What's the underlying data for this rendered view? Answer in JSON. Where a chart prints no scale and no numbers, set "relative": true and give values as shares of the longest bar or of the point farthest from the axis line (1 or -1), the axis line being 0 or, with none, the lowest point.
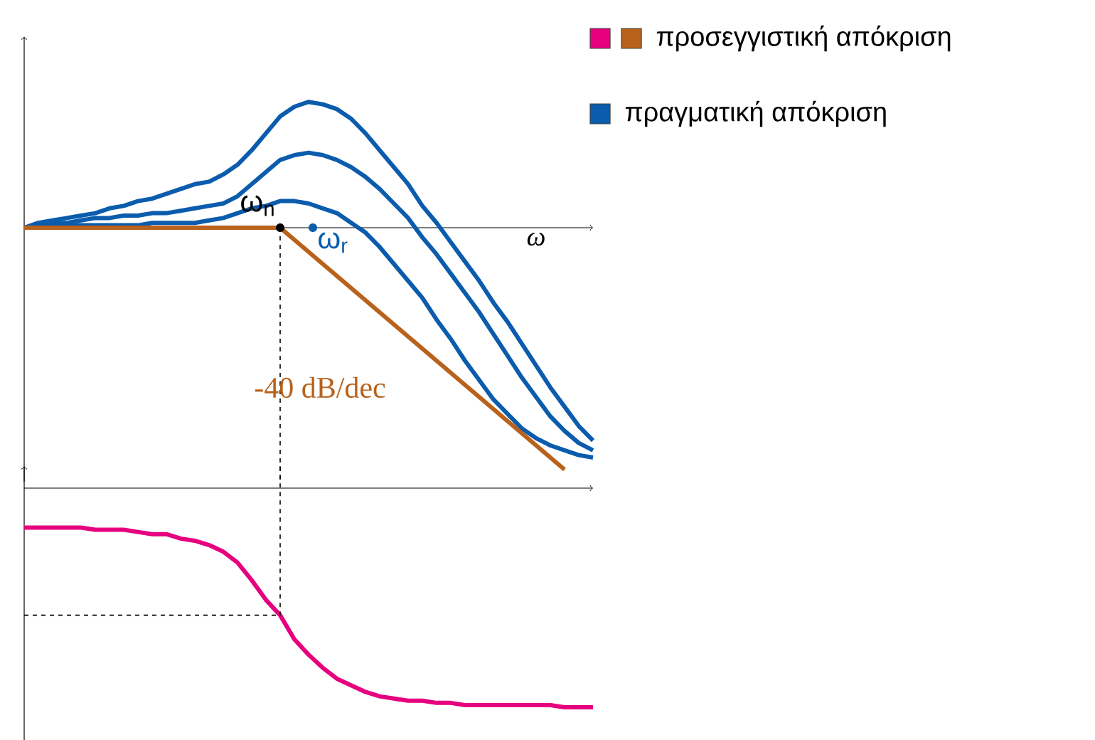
{
  "chart_data": [
    {
      "type": "line",
      "relative": true,
      "xlabel": "ω",
      "legend": "top right",
      "categories": [
        null,
        null,
        null,
        null,
        null,
        null,
        null,
        null,
        null,
        null,
        null,
        null,
        null,
        null,
        null,
        null,
        null,
        null,
        null,
        null,
        null,
        null,
        null,
        null,
        null,
        null,
        null,
        null,
        null,
        null,
        null,
        null,
        null,
        null,
        null,
        null,
        null,
        null,
        null,
        null,
        null
      ],
      "series": [
        {
          "name": "προσεγγιστική απόκριση",
          "color": "#b8621b",
          "values": [
            0,
            0,
            0,
            0,
            0,
            0,
            0,
            0,
            0,
            0,
            0,
            0,
            0,
            0,
            0,
            0,
            0,
            0,
            0,
            -0.05,
            -0.1,
            -0.15,
            -0.2,
            -0.25,
            -0.3,
            -0.35,
            -0.4,
            -0.45,
            -0.5,
            -0.55,
            -0.6,
            -0.65,
            -0.7,
            -0.75,
            -0.8,
            -0.85,
            -0.9,
            -0.95,
            -1,
            null,
            null
          ]
        },
        {
          "name": "πραγματική απόκριση",
          "color": "#0b5cad",
          "values": [
            0,
            0.02,
            0.03,
            0.04,
            0.05,
            0.06,
            0.08,
            0.09,
            0.11,
            0.12,
            0.14,
            0.16,
            0.18,
            0.19,
            0.22,
            0.26,
            0.32,
            0.39,
            0.46,
            0.5,
            0.52,
            0.51,
            0.49,
            0.45,
            0.39,
            0.32,
            0.25,
            0.18,
            0.09,
            0.02,
            -0.06,
            -0.14,
            -0.22,
            -0.31,
            -0.39,
            -0.48,
            -0.57,
            -0.66,
            -0.74,
            -0.82,
            -0.88
          ]
        },
        {
          "color": "#0b5cad",
          "values": [
            0,
            0.01,
            0.02,
            0.02,
            0.03,
            0.04,
            0.04,
            0.05,
            0.05,
            0.06,
            0.06,
            0.07,
            0.08,
            0.09,
            0.1,
            0.13,
            0.18,
            0.23,
            0.28,
            0.3,
            0.31,
            0.3,
            0.28,
            0.25,
            0.21,
            0.16,
            0.1,
            0.04,
            -0.04,
            -0.11,
            -0.19,
            -0.27,
            -0.35,
            -0.44,
            -0.53,
            -0.62,
            -0.7,
            -0.78,
            -0.84,
            -0.89,
            -0.92
          ]
        },
        {
          "color": "#0b5cad",
          "values": [
            0,
            0,
            0.01,
            0.01,
            0.01,
            0.01,
            0.01,
            0.01,
            0.01,
            0.02,
            0.02,
            0.02,
            0.02,
            0.03,
            0.04,
            0.06,
            0.08,
            0.09,
            0.11,
            0.11,
            0.1,
            0.08,
            0.06,
            0.02,
            -0.02,
            -0.08,
            -0.15,
            -0.22,
            -0.29,
            -0.38,
            -0.46,
            -0.55,
            -0.63,
            -0.71,
            -0.77,
            -0.83,
            -0.87,
            -0.9,
            -0.92,
            -0.94,
            -0.95
          ]
        }
      ],
      "annotations": [
        "ω$_{n}$",
        "ω$_{r}$",
        "-40 dB/dec"
      ]
    },
    {
      "type": "line",
      "relative": true,
      "categories": [
        null,
        null,
        null,
        null,
        null,
        null,
        null,
        null,
        null,
        null,
        null,
        null,
        null,
        null,
        null,
        null,
        null,
        null,
        null,
        null,
        null,
        null,
        null,
        null,
        null,
        null,
        null,
        null,
        null,
        null,
        null,
        null,
        null,
        null,
        null,
        null,
        null,
        null,
        null,
        null,
        null
      ],
      "series": [
        {
          "color": "#e6007e",
          "values": [
            -0.18,
            -0.18,
            -0.18,
            -0.18,
            -0.18,
            -0.19,
            -0.19,
            -0.19,
            -0.2,
            -0.21,
            -0.21,
            -0.23,
            -0.24,
            -0.26,
            -0.29,
            -0.34,
            -0.42,
            -0.51,
            -0.58,
            -0.69,
            -0.76,
            -0.82,
            -0.87,
            -0.9,
            -0.93,
            -0.95,
            -0.96,
            -0.97,
            -0.97,
            -0.98,
            -0.98,
            -0.99,
            -0.99,
            -0.99,
            -0.99,
            -0.99,
            -0.99,
            -0.99,
            -1,
            -1,
            -1
          ]
        }
      ],
      "ref_lines": [
        {
          "axis": "y",
          "value": -0.58,
          "line_style": "dashed"
        }
      ]
    }
  ]
}
